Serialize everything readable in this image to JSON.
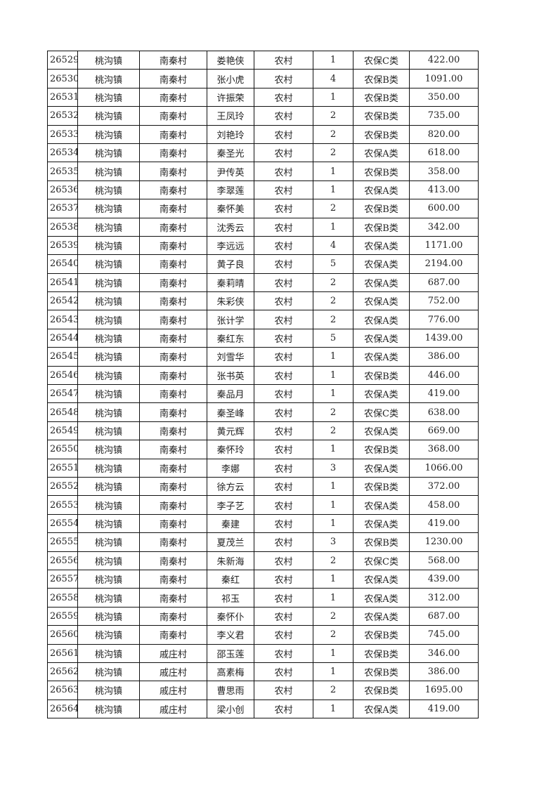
{
  "rows": [
    [
      "26529",
      "桃沟镇",
      "南秦村",
      "娄艳侠",
      "农村",
      "1",
      "农保C类",
      "422.00"
    ],
    [
      "26530",
      "桃沟镇",
      "南秦村",
      "张小虎",
      "农村",
      "4",
      "农保B类",
      "1091.00"
    ],
    [
      "26531",
      "桃沟镇",
      "南秦村",
      "许振荣",
      "农村",
      "1",
      "农保B类",
      "350.00"
    ],
    [
      "26532",
      "桃沟镇",
      "南秦村",
      "王凤玲",
      "农村",
      "2",
      "农保B类",
      "735.00"
    ],
    [
      "26533",
      "桃沟镇",
      "南秦村",
      "刘艳玲",
      "农村",
      "2",
      "农保B类",
      "820.00"
    ],
    [
      "26534",
      "桃沟镇",
      "南秦村",
      "秦圣光",
      "农村",
      "2",
      "农保A类",
      "618.00"
    ],
    [
      "26535",
      "桃沟镇",
      "南秦村",
      "尹传英",
      "农村",
      "1",
      "农保B类",
      "358.00"
    ],
    [
      "26536",
      "桃沟镇",
      "南秦村",
      "李翠莲",
      "农村",
      "1",
      "农保A类",
      "413.00"
    ],
    [
      "26537",
      "桃沟镇",
      "南秦村",
      "秦怀美",
      "农村",
      "2",
      "农保B类",
      "600.00"
    ],
    [
      "26538",
      "桃沟镇",
      "南秦村",
      "沈秀云",
      "农村",
      "1",
      "农保B类",
      "342.00"
    ],
    [
      "26539",
      "桃沟镇",
      "南秦村",
      "李远远",
      "农村",
      "4",
      "农保A类",
      "1171.00"
    ],
    [
      "26540",
      "桃沟镇",
      "南秦村",
      "黄子良",
      "农村",
      "5",
      "农保A类",
      "2194.00"
    ],
    [
      "26541",
      "桃沟镇",
      "南秦村",
      "秦莉晴",
      "农村",
      "2",
      "农保A类",
      "687.00"
    ],
    [
      "26542",
      "桃沟镇",
      "南秦村",
      "朱彩侠",
      "农村",
      "2",
      "农保A类",
      "752.00"
    ],
    [
      "26543",
      "桃沟镇",
      "南秦村",
      "张计学",
      "农村",
      "2",
      "农保A类",
      "776.00"
    ],
    [
      "26544",
      "桃沟镇",
      "南秦村",
      "秦红东",
      "农村",
      "5",
      "农保A类",
      "1439.00"
    ],
    [
      "26545",
      "桃沟镇",
      "南秦村",
      "刘雪华",
      "农村",
      "1",
      "农保A类",
      "386.00"
    ],
    [
      "26546",
      "桃沟镇",
      "南秦村",
      "张书英",
      "农村",
      "1",
      "农保B类",
      "446.00"
    ],
    [
      "26547",
      "桃沟镇",
      "南秦村",
      "秦品月",
      "农村",
      "1",
      "农保A类",
      "419.00"
    ],
    [
      "26548",
      "桃沟镇",
      "南秦村",
      "秦圣峰",
      "农村",
      "2",
      "农保C类",
      "638.00"
    ],
    [
      "26549",
      "桃沟镇",
      "南秦村",
      "黄元辉",
      "农村",
      "2",
      "农保A类",
      "669.00"
    ],
    [
      "26550",
      "桃沟镇",
      "南秦村",
      "秦怀玲",
      "农村",
      "1",
      "农保B类",
      "368.00"
    ],
    [
      "26551",
      "桃沟镇",
      "南秦村",
      "李娜",
      "农村",
      "3",
      "农保A类",
      "1066.00"
    ],
    [
      "26552",
      "桃沟镇",
      "南秦村",
      "徐方云",
      "农村",
      "1",
      "农保B类",
      "372.00"
    ],
    [
      "26553",
      "桃沟镇",
      "南秦村",
      "李子艺",
      "农村",
      "1",
      "农保A类",
      "458.00"
    ],
    [
      "26554",
      "桃沟镇",
      "南秦村",
      "秦建",
      "农村",
      "1",
      "农保A类",
      "419.00"
    ],
    [
      "26555",
      "桃沟镇",
      "南秦村",
      "夏茂兰",
      "农村",
      "3",
      "农保B类",
      "1230.00"
    ],
    [
      "26556",
      "桃沟镇",
      "南秦村",
      "朱新海",
      "农村",
      "2",
      "农保C类",
      "568.00"
    ],
    [
      "26557",
      "桃沟镇",
      "南秦村",
      "秦红",
      "农村",
      "1",
      "农保A类",
      "439.00"
    ],
    [
      "26558",
      "桃沟镇",
      "南秦村",
      "祁玉",
      "农村",
      "1",
      "农保A类",
      "312.00"
    ],
    [
      "26559",
      "桃沟镇",
      "南秦村",
      "秦怀仆",
      "农村",
      "2",
      "农保A类",
      "687.00"
    ],
    [
      "26560",
      "桃沟镇",
      "南秦村",
      "李义君",
      "农村",
      "2",
      "农保B类",
      "745.00"
    ],
    [
      "26561",
      "桃沟镇",
      "戚庄村",
      "邵玉莲",
      "农村",
      "1",
      "农保B类",
      "346.00"
    ],
    [
      "26562",
      "桃沟镇",
      "戚庄村",
      "高素梅",
      "农村",
      "1",
      "农保B类",
      "386.00"
    ],
    [
      "26563",
      "桃沟镇",
      "戚庄村",
      "曹思雨",
      "农村",
      "2",
      "农保B类",
      "1695.00"
    ],
    [
      "26564",
      "桃沟镇",
      "戚庄村",
      "梁小创",
      "农村",
      "1",
      "农保A类",
      "419.00"
    ]
  ]
}
